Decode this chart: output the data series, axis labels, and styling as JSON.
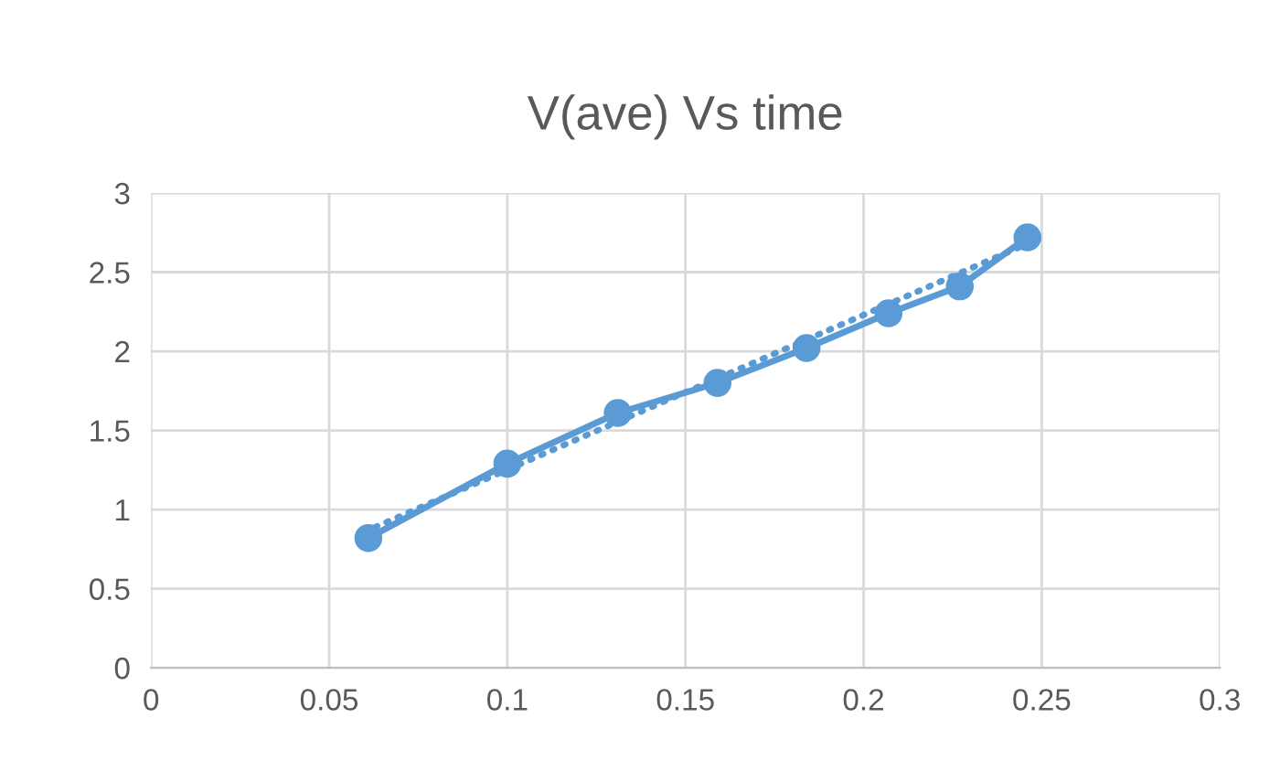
{
  "chart_data": {
    "type": "line",
    "title": "V(ave) Vs time",
    "xlim": [
      0,
      0.3
    ],
    "xticks": [
      0,
      0.05,
      0.1,
      0.15,
      0.2,
      0.25,
      0.3
    ],
    "ylim": [
      0,
      3
    ],
    "yticks": [
      0,
      0.5,
      1,
      1.5,
      2,
      2.5,
      3
    ],
    "grid": true,
    "series": [
      {
        "color": "#5b9bd5",
        "marker": "circle",
        "line_style": "solid",
        "x": [
          0.061,
          0.1,
          0.131,
          0.159,
          0.184,
          0.207,
          0.227,
          0.246
        ],
        "values": [
          0.82,
          1.29,
          1.61,
          1.8,
          2.02,
          2.24,
          2.41,
          2.72
        ]
      },
      {
        "color": "#5b9bd5",
        "marker": "none",
        "line_style": "dotted",
        "x": [
          0.063,
          0.244
        ],
        "values": [
          0.89,
          2.66
        ]
      }
    ]
  }
}
